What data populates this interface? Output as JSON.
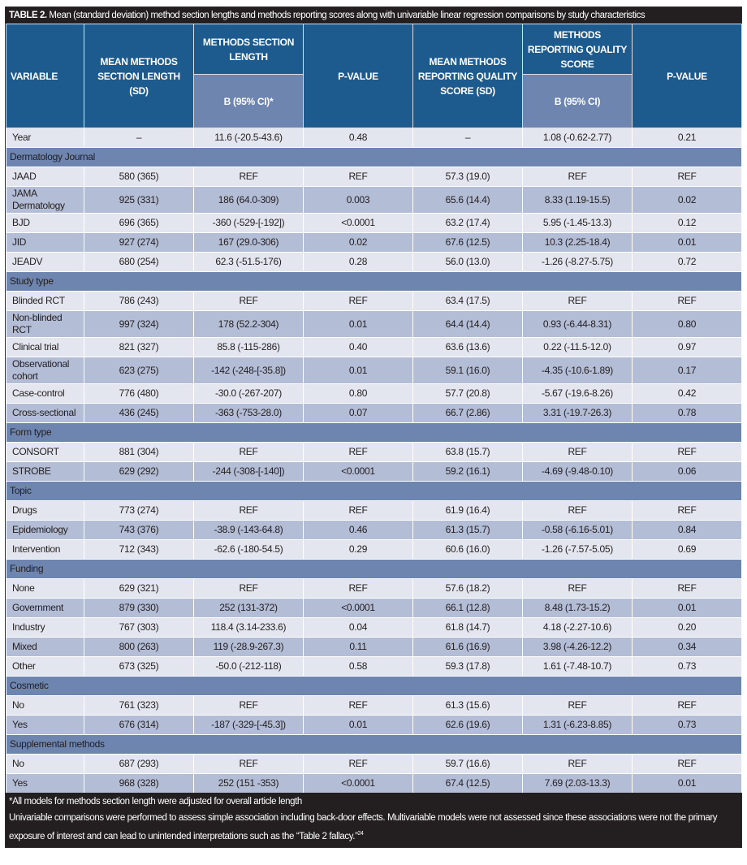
{
  "title": {
    "label": "TABLE 2.",
    "text": "Mean (standard deviation) method section lengths and methods reporting scores along with univariable linear regression comparisons by study characteristics"
  },
  "header": {
    "variable": "VARIABLE",
    "mean_length": "MEAN METHODS SECTION LENGTH (SD)",
    "length_group": "METHODS SECTION LENGTH",
    "length_b": "B (95% CI)*",
    "p_value_1": "P-VALUE",
    "mean_quality": "MEAN METHODS REPORTING QUALITY SCORE (SD)",
    "quality_group": "METHODS REPORTING QUALITY SCORE",
    "quality_b": "B (95% CI)",
    "p_value_2": "P-VALUE"
  },
  "rows": [
    {
      "cells": [
        "Year",
        "–",
        "11.6 (-20.5-43.6)",
        "0.48",
        "–",
        "1.08 (-0.62-2.77)",
        "0.21"
      ]
    },
    {
      "section": "Dermatology Journal"
    },
    {
      "cells": [
        "JAAD",
        "580 (365)",
        "REF",
        "REF",
        "57.3 (19.0)",
        "REF",
        "REF"
      ]
    },
    {
      "cells": [
        "JAMA Dermatology",
        "925 (331)",
        "186 (64.0-309)",
        "0.003",
        "65.6 (14.4)",
        "8.33 (1.19-15.5)",
        "0.02"
      ]
    },
    {
      "cells": [
        "BJD",
        "696 (365)",
        "-360 (-529-[-192])",
        "<0.0001",
        "63.2 (17.4)",
        "5.95 (-1.45-13.3)",
        "0.12"
      ]
    },
    {
      "cells": [
        "JID",
        "927 (274)",
        "167 (29.0-306)",
        "0.02",
        "67.6 (12.5)",
        "10.3 (2.25-18.4)",
        "0.01"
      ]
    },
    {
      "cells": [
        "JEADV",
        "680 (254)",
        "62.3 (-51.5-176)",
        "0.28",
        "56.0 (13.0)",
        "-1.26 (-8.27-5.75)",
        "0.72"
      ]
    },
    {
      "section": "Study type"
    },
    {
      "cells": [
        "Blinded RCT",
        "786 (243)",
        "REF",
        "REF",
        "63.4 (17.5)",
        "REF",
        "REF"
      ]
    },
    {
      "cells": [
        "Non-blinded RCT",
        "997 (324)",
        "178 (52.2-304)",
        "0.01",
        "64.4 (14.4)",
        "0.93 (-6.44-8.31)",
        "0.80"
      ]
    },
    {
      "cells": [
        "Clinical trial",
        "821 (327)",
        "85.8 (-115-286)",
        "0.40",
        "63.6 (13.6)",
        "0.22 (-11.5-12.0)",
        "0.97"
      ]
    },
    {
      "cells": [
        "Observational cohort",
        "623 (275)",
        "-142 (-248-[-35.8])",
        "0.01",
        "59.1 (16.0)",
        "-4.35 (-10.6-1.89)",
        "0.17"
      ]
    },
    {
      "cells": [
        "Case-control",
        "776 (480)",
        "-30.0 (-267-207)",
        "0.80",
        "57.7 (20.8)",
        "-5.67 (-19.6-8.26)",
        "0.42"
      ]
    },
    {
      "cells": [
        "Cross-sectional",
        "436 (245)",
        "-363 (-753-28.0)",
        "0.07",
        "66.7 (2.86)",
        "3.31 (-19.7-26.3)",
        "0.78"
      ]
    },
    {
      "section": "Form type"
    },
    {
      "cells": [
        "CONSORT",
        "881 (304)",
        "REF",
        "REF",
        "63.8 (15.7)",
        "REF",
        "REF"
      ]
    },
    {
      "cells": [
        "STROBE",
        "629 (292)",
        "-244 (-308-[-140])",
        "<0.0001",
        "59.2 (16.1)",
        "-4.69 (-9.48-0.10)",
        "0.06"
      ]
    },
    {
      "section": "Topic"
    },
    {
      "cells": [
        "Drugs",
        "773 (274)",
        "REF",
        "REF",
        "61.9 (16.4)",
        "REF",
        "REF"
      ]
    },
    {
      "cells": [
        "Epidemiology",
        "743 (376)",
        "-38.9 (-143-64.8)",
        "0.46",
        "61.3 (15.7)",
        "-0.58 (-6.16-5.01)",
        "0.84"
      ]
    },
    {
      "cells": [
        "Intervention",
        "712 (343)",
        "-62.6 (-180-54.5)",
        "0.29",
        "60.6 (16.0)",
        "-1.26 (-7.57-5.05)",
        "0.69"
      ]
    },
    {
      "section": "Funding"
    },
    {
      "cells": [
        "None",
        "629 (321)",
        "REF",
        "REF",
        "57.6 (18.2)",
        "REF",
        "REF"
      ]
    },
    {
      "cells": [
        "Government",
        "879 (330)",
        "252 (131-372)",
        "<0.0001",
        "66.1 (12.8)",
        "8.48 (1.73-15.2)",
        "0.01"
      ]
    },
    {
      "cells": [
        "Industry",
        "767 (303)",
        "118.4 (3.14-233.6)",
        "0.04",
        "61.8 (14.7)",
        "4.18 (-2.27-10.6)",
        "0.20"
      ]
    },
    {
      "cells": [
        "Mixed",
        "800 (263)",
        "119 (-28.9-267.3)",
        "0.11",
        "61.6 (16.9)",
        "3.98 (-4.26-12.2)",
        "0.34"
      ]
    },
    {
      "cells": [
        "Other",
        "673 (325)",
        "-50.0 (-212-118)",
        "0.58",
        "59.3 (17.8)",
        "1.61 (-7.48-10.7)",
        "0.73"
      ]
    },
    {
      "section": "Cosmetic"
    },
    {
      "cells": [
        "No",
        "761 (323)",
        "REF",
        "REF",
        "61.3 (15.6)",
        "REF",
        "REF"
      ]
    },
    {
      "cells": [
        "Yes",
        "676 (314)",
        "-187 (-329-[-45.3])",
        "0.01",
        "62.6 (19.6)",
        "1.31 (-6.23-8.85)",
        "0.73"
      ]
    },
    {
      "section": "Supplemental methods"
    },
    {
      "cells": [
        "No",
        "687 (293)",
        "REF",
        "REF",
        "59.7 (16.6)",
        "REF",
        "REF"
      ]
    },
    {
      "cells": [
        "Yes",
        "968 (328)",
        "252 (151 -353)",
        "<0.0001",
        "67.4 (12.5)",
        "7.69 (2.03-13.3)",
        "0.01"
      ]
    }
  ],
  "footnotes": {
    "line1": "*All models for methods section length were adjusted for overall article length",
    "line2": "Univariable comparisons were performed to assess simple association including back-door effects. Multivariable models were not assessed since these associations were not the primary exposure of interest and can lead to unintended interpretations such as the “Table 2 fallacy.”",
    "ref": "24"
  },
  "colors": {
    "header": "#1d5a8e",
    "subheader": "#6d85af",
    "row_light": "#e3e6ee",
    "row_dark": "#b3bdd6",
    "title_bar": "#231f20"
  }
}
